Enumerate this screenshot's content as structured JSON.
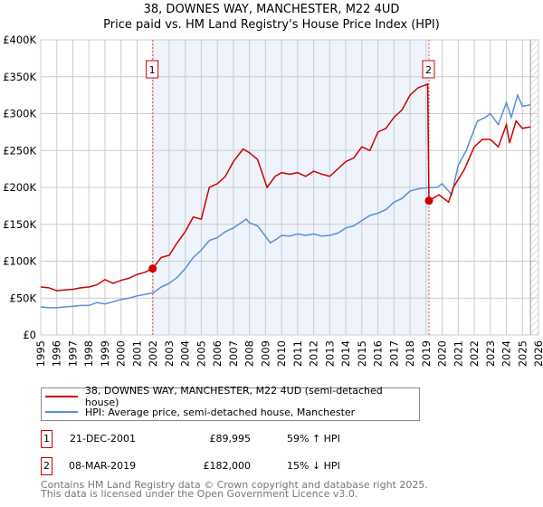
{
  "title": {
    "line1": "38, DOWNES WAY, MANCHESTER, M22 4UD",
    "line2": "Price paid vs. HM Land Registry's House Price Index (HPI)"
  },
  "chart_data": {
    "type": "line",
    "title": "38, DOWNES WAY, MANCHESTER, M22 4UD — Price paid vs. HM Land Registry's House Price Index (HPI)",
    "xlim": [
      1995,
      2026
    ],
    "ylim": [
      0,
      400000
    ],
    "x_ticks": [
      "1995",
      "1996",
      "1997",
      "1998",
      "1999",
      "2000",
      "2001",
      "2002",
      "2003",
      "2004",
      "2005",
      "2006",
      "2007",
      "2008",
      "2009",
      "2010",
      "2011",
      "2012",
      "2013",
      "2014",
      "2015",
      "2016",
      "2017",
      "2018",
      "2019",
      "2020",
      "2021",
      "2022",
      "2023",
      "2024",
      "2025",
      "2026"
    ],
    "y_ticks": [
      {
        "v": 0,
        "label": "£0"
      },
      {
        "v": 50000,
        "label": "£50K"
      },
      {
        "v": 100000,
        "label": "£100K"
      },
      {
        "v": 150000,
        "label": "£150K"
      },
      {
        "v": 200000,
        "label": "£200K"
      },
      {
        "v": 250000,
        "label": "£250K"
      },
      {
        "v": 300000,
        "label": "£300K"
      },
      {
        "v": 350000,
        "label": "£350K"
      },
      {
        "v": 400000,
        "label": "£400K"
      }
    ],
    "grid": true,
    "shaded_range": [
      2001.97,
      2019.18
    ],
    "hatched_from": 2025.5,
    "series": [
      {
        "name": "38, DOWNES WAY, MANCHESTER, M22 4UD (semi-detached house)",
        "color": "#cc0000",
        "x": [
          1995,
          1995.5,
          1996,
          1996.5,
          1997,
          1997.5,
          1998,
          1998.5,
          1999,
          1999.5,
          2000,
          2000.5,
          2001,
          2001.5,
          2001.97,
          2002.5,
          2003,
          2003.5,
          2004,
          2004.5,
          2005,
          2005.5,
          2006,
          2006.5,
          2007,
          2007.6,
          2008,
          2008.5,
          2009.1,
          2009.6,
          2010,
          2010.5,
          2011,
          2011.5,
          2012,
          2012.5,
          2013,
          2013.5,
          2014,
          2014.5,
          2015,
          2015.5,
          2016,
          2016.5,
          2017,
          2017.5,
          2018,
          2018.5,
          2019.1,
          2019.18,
          2019.8,
          2020.4,
          2020.7,
          2021.4,
          2022,
          2022.5,
          2023,
          2023.5,
          2024,
          2024.2,
          2024.6,
          2025,
          2025.5
        ],
        "y": [
          65000,
          64000,
          60000,
          61000,
          62000,
          64000,
          65000,
          68000,
          75000,
          70000,
          74000,
          77000,
          82000,
          85000,
          89995,
          105000,
          108000,
          125000,
          140000,
          160000,
          157000,
          200000,
          205000,
          215000,
          235000,
          252000,
          247000,
          238000,
          200000,
          215000,
          220000,
          218000,
          220000,
          215000,
          222000,
          218000,
          215000,
          225000,
          235000,
          240000,
          255000,
          250000,
          275000,
          280000,
          295000,
          305000,
          325000,
          335000,
          340000,
          182000,
          190000,
          180000,
          200000,
          225000,
          255000,
          265000,
          265000,
          255000,
          285000,
          260000,
          290000,
          280000,
          282000
        ]
      },
      {
        "name": "HPI: Average price, semi-detached house, Manchester",
        "color": "#5b8fd6",
        "x": [
          1995,
          1995.5,
          1996,
          1996.5,
          1997,
          1997.5,
          1998,
          1998.5,
          1999,
          1999.5,
          2000,
          2000.5,
          2001,
          2001.5,
          2002,
          2002.5,
          2003,
          2003.5,
          2004,
          2004.5,
          2005,
          2005.5,
          2006,
          2006.5,
          2007,
          2007.8,
          2008,
          2008.5,
          2009.3,
          2009.7,
          2010,
          2010.5,
          2011,
          2011.5,
          2012,
          2012.5,
          2013,
          2013.5,
          2014,
          2014.5,
          2015,
          2015.5,
          2016,
          2016.5,
          2017,
          2017.5,
          2018,
          2018.5,
          2019.2,
          2019.7,
          2020,
          2020.6,
          2021,
          2021.5,
          2022.2,
          2022.7,
          2023,
          2023.5,
          2024,
          2024.3,
          2024.7,
          2025,
          2025.5
        ],
        "y": [
          38000,
          37000,
          37000,
          38000,
          39000,
          40000,
          40000,
          44000,
          42000,
          45000,
          48000,
          50000,
          53000,
          55000,
          57000,
          65000,
          70000,
          78000,
          90000,
          105000,
          115000,
          128000,
          132000,
          140000,
          145000,
          157000,
          152000,
          148000,
          125000,
          130000,
          135000,
          134000,
          137000,
          135000,
          137000,
          134000,
          135000,
          138000,
          145000,
          148000,
          155000,
          162000,
          165000,
          170000,
          180000,
          185000,
          195000,
          198000,
          200000,
          200000,
          205000,
          190000,
          230000,
          250000,
          290000,
          295000,
          300000,
          285000,
          315000,
          295000,
          325000,
          310000,
          312000
        ]
      }
    ],
    "annotations": [
      {
        "id": "1",
        "x": 2001.97,
        "y": 89995
      },
      {
        "id": "2",
        "x": 2019.18,
        "y": 182000
      }
    ]
  },
  "legend": {
    "items": [
      {
        "label": "38, DOWNES WAY, MANCHESTER, M22 4UD (semi-detached house)",
        "color": "#cc0000"
      },
      {
        "label": "HPI: Average price, semi-detached house, Manchester",
        "color": "#5b8fd6"
      }
    ]
  },
  "transactions": [
    {
      "id": "1",
      "date": "21-DEC-2001",
      "price": "£89,995",
      "hpi": "59% ↑ HPI"
    },
    {
      "id": "2",
      "date": "08-MAR-2019",
      "price": "£182,000",
      "hpi": "15% ↓ HPI"
    }
  ],
  "footer": {
    "line1": "Contains HM Land Registry data © Crown copyright and database right 2025.",
    "line2": "This data is licensed under the Open Government Licence v3.0."
  }
}
